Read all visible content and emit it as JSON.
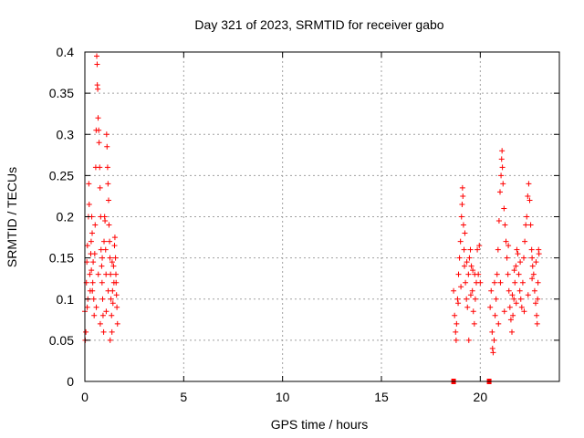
{
  "chart_data": {
    "type": "scatter",
    "title": "Day 321 of 2023, SRMTID for receiver gabo",
    "xlabel": "GPS time / hours",
    "ylabel": "SRMTID / TECUs",
    "xlim": [
      0,
      24
    ],
    "ylim": [
      0,
      0.4
    ],
    "grid": true,
    "marker": "+",
    "color": "#ff0000",
    "x_ticks": [
      "0",
      "5",
      "10",
      "15",
      "20"
    ],
    "x_tick_values": [
      0,
      5,
      10,
      15,
      20
    ],
    "y_ticks": [
      "0",
      "0.05",
      "0.1",
      "0.15",
      "0.2",
      "0.25",
      "0.3",
      "0.35",
      "0.4"
    ],
    "y_tick_values": [
      0,
      0.05,
      0.1,
      0.15,
      0.2,
      0.25,
      0.3,
      0.35,
      0.4
    ],
    "series": [
      {
        "name": "SRMTID",
        "points": [
          [
            0.0,
            0.085
          ],
          [
            0.02,
            0.05
          ],
          [
            0.05,
            0.06
          ],
          [
            0.08,
            0.12
          ],
          [
            0.1,
            0.145
          ],
          [
            0.12,
            0.09
          ],
          [
            0.15,
            0.1
          ],
          [
            0.18,
            0.2
          ],
          [
            0.2,
            0.24
          ],
          [
            0.22,
            0.215
          ],
          [
            0.25,
            0.13
          ],
          [
            0.27,
            0.11
          ],
          [
            0.3,
            0.155
          ],
          [
            0.32,
            0.17
          ],
          [
            0.35,
            0.2
          ],
          [
            0.37,
            0.18
          ],
          [
            0.4,
            0.12
          ],
          [
            0.42,
            0.145
          ],
          [
            0.45,
            0.1
          ],
          [
            0.47,
            0.08
          ],
          [
            0.5,
            0.155
          ],
          [
            0.52,
            0.19
          ],
          [
            0.55,
            0.26
          ],
          [
            0.57,
            0.305
          ],
          [
            0.6,
            0.395
          ],
          [
            0.62,
            0.385
          ],
          [
            0.63,
            0.36
          ],
          [
            0.65,
            0.355
          ],
          [
            0.67,
            0.32
          ],
          [
            0.7,
            0.305
          ],
          [
            0.72,
            0.29
          ],
          [
            0.75,
            0.26
          ],
          [
            0.77,
            0.235
          ],
          [
            0.8,
            0.2
          ],
          [
            0.82,
            0.16
          ],
          [
            0.85,
            0.14
          ],
          [
            0.87,
            0.12
          ],
          [
            0.9,
            0.1
          ],
          [
            0.92,
            0.08
          ],
          [
            0.95,
            0.06
          ],
          [
            0.97,
            0.17
          ],
          [
            1.0,
            0.2
          ],
          [
            1.02,
            0.195
          ],
          [
            1.05,
            0.16
          ],
          [
            1.07,
            0.13
          ],
          [
            1.1,
            0.3
          ],
          [
            1.12,
            0.285
          ],
          [
            1.15,
            0.26
          ],
          [
            1.17,
            0.24
          ],
          [
            1.2,
            0.22
          ],
          [
            1.22,
            0.19
          ],
          [
            1.25,
            0.17
          ],
          [
            1.27,
            0.15
          ],
          [
            1.3,
            0.13
          ],
          [
            1.32,
            0.1
          ],
          [
            1.35,
            0.08
          ],
          [
            1.37,
            0.06
          ],
          [
            1.4,
            0.11
          ],
          [
            1.42,
            0.095
          ],
          [
            1.45,
            0.14
          ],
          [
            1.47,
            0.12
          ],
          [
            1.5,
            0.165
          ],
          [
            1.52,
            0.175
          ],
          [
            1.55,
            0.15
          ],
          [
            1.57,
            0.13
          ],
          [
            1.6,
            0.105
          ],
          [
            1.62,
            0.09
          ],
          [
            1.65,
            0.07
          ],
          [
            0.38,
            0.11
          ],
          [
            0.58,
            0.09
          ],
          [
            0.78,
            0.07
          ],
          [
            1.08,
            0.085
          ],
          [
            1.28,
            0.05
          ],
          [
            0.13,
            0.165
          ],
          [
            0.33,
            0.135
          ],
          [
            0.68,
            0.13
          ],
          [
            0.88,
            0.15
          ],
          [
            1.18,
            0.11
          ],
          [
            1.38,
            0.145
          ],
          [
            1.58,
            0.12
          ],
          [
            18.65,
            0.11
          ],
          [
            18.7,
            0.08
          ],
          [
            18.75,
            0.06
          ],
          [
            18.78,
            0.05
          ],
          [
            18.8,
            0.07
          ],
          [
            18.85,
            0.1
          ],
          [
            18.9,
            0.13
          ],
          [
            18.95,
            0.15
          ],
          [
            19.0,
            0.17
          ],
          [
            19.05,
            0.2
          ],
          [
            19.08,
            0.215
          ],
          [
            19.1,
            0.235
          ],
          [
            19.12,
            0.225
          ],
          [
            19.15,
            0.19
          ],
          [
            19.18,
            0.16
          ],
          [
            19.2,
            0.14
          ],
          [
            19.25,
            0.12
          ],
          [
            19.3,
            0.1
          ],
          [
            19.35,
            0.09
          ],
          [
            19.4,
            0.13
          ],
          [
            19.45,
            0.15
          ],
          [
            19.5,
            0.16
          ],
          [
            19.55,
            0.14
          ],
          [
            19.6,
            0.11
          ],
          [
            19.65,
            0.085
          ],
          [
            19.7,
            0.07
          ],
          [
            19.75,
            0.1
          ],
          [
            19.8,
            0.12
          ],
          [
            19.85,
            0.16
          ],
          [
            19.9,
            0.13
          ],
          [
            19.95,
            0.165
          ],
          [
            20.0,
            0.12
          ],
          [
            19.22,
            0.18
          ],
          [
            19.42,
            0.05
          ],
          [
            19.62,
            0.135
          ],
          [
            18.88,
            0.095
          ],
          [
            19.02,
            0.115
          ],
          [
            19.32,
            0.145
          ],
          [
            19.52,
            0.105
          ],
          [
            19.72,
            0.13
          ],
          [
            20.5,
            0.09
          ],
          [
            20.55,
            0.11
          ],
          [
            20.6,
            0.06
          ],
          [
            20.62,
            0.04
          ],
          [
            20.65,
            0.035
          ],
          [
            20.7,
            0.05
          ],
          [
            20.75,
            0.08
          ],
          [
            20.8,
            0.1
          ],
          [
            20.85,
            0.13
          ],
          [
            20.9,
            0.16
          ],
          [
            20.95,
            0.195
          ],
          [
            21.0,
            0.23
          ],
          [
            21.05,
            0.25
          ],
          [
            21.08,
            0.27
          ],
          [
            21.1,
            0.28
          ],
          [
            21.12,
            0.26
          ],
          [
            21.15,
            0.24
          ],
          [
            21.2,
            0.21
          ],
          [
            21.25,
            0.19
          ],
          [
            21.3,
            0.17
          ],
          [
            21.35,
            0.15
          ],
          [
            21.4,
            0.13
          ],
          [
            21.45,
            0.11
          ],
          [
            21.5,
            0.09
          ],
          [
            21.55,
            0.075
          ],
          [
            21.6,
            0.06
          ],
          [
            21.65,
            0.08
          ],
          [
            21.7,
            0.1
          ],
          [
            21.75,
            0.12
          ],
          [
            21.8,
            0.14
          ],
          [
            21.85,
            0.16
          ],
          [
            21.9,
            0.155
          ],
          [
            21.95,
            0.13
          ],
          [
            22.0,
            0.11
          ],
          [
            22.05,
            0.1
          ],
          [
            22.1,
            0.09
          ],
          [
            22.15,
            0.12
          ],
          [
            22.2,
            0.15
          ],
          [
            22.25,
            0.17
          ],
          [
            22.3,
            0.19
          ],
          [
            22.35,
            0.2
          ],
          [
            22.4,
            0.225
          ],
          [
            22.45,
            0.24
          ],
          [
            22.5,
            0.22
          ],
          [
            22.55,
            0.19
          ],
          [
            22.6,
            0.16
          ],
          [
            22.62,
            0.15
          ],
          [
            22.65,
            0.14
          ],
          [
            22.7,
            0.13
          ],
          [
            22.75,
            0.11
          ],
          [
            22.8,
            0.095
          ],
          [
            22.85,
            0.08
          ],
          [
            22.88,
            0.07
          ],
          [
            22.9,
            0.1
          ],
          [
            22.92,
            0.12
          ],
          [
            22.95,
            0.16
          ],
          [
            22.97,
            0.155
          ],
          [
            21.02,
            0.12
          ],
          [
            21.22,
            0.085
          ],
          [
            21.42,
            0.165
          ],
          [
            21.62,
            0.105
          ],
          [
            21.82,
            0.095
          ],
          [
            22.02,
            0.145
          ],
          [
            22.22,
            0.085
          ],
          [
            22.42,
            0.105
          ],
          [
            22.62,
            0.125
          ],
          [
            22.82,
            0.145
          ],
          [
            20.72,
            0.12
          ],
          [
            20.92,
            0.07
          ],
          [
            21.72,
            0.135
          ]
        ],
        "zero_points": [
          [
            18.65,
            0
          ],
          [
            20.45,
            0
          ]
        ]
      }
    ]
  }
}
